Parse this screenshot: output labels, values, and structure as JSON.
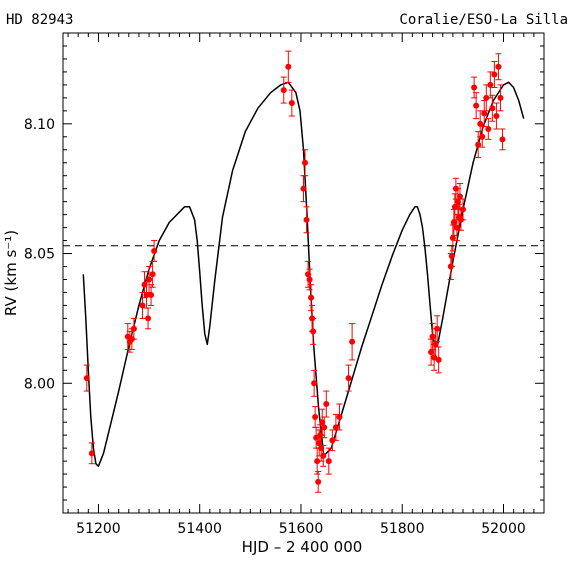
{
  "chart_data": {
    "type": "scatter",
    "title_left": "HD 82943",
    "title_right": "Coralie/ESO-La Silla",
    "xlabel": "HJD  –  2 400 000",
    "ylabel": "RV (km s⁻¹)",
    "xlim": [
      51130,
      52080
    ],
    "ylim": [
      7.95,
      8.135
    ],
    "xticks": [
      51200,
      51400,
      51600,
      51800,
      52000
    ],
    "xticklabels": [
      "51200",
      "51400",
      "51600",
      "51800",
      "52000"
    ],
    "yticks": [
      8.0,
      8.05,
      8.1
    ],
    "yticklabels": [
      "8.00",
      "8.05",
      "8.10"
    ],
    "reference_line": {
      "y": 8.053,
      "style": "dashed"
    },
    "grid": false,
    "series": [
      {
        "kind": "points",
        "color": "#ff0000",
        "x": [
          51177,
          51187,
          51258,
          51262,
          51266,
          51270,
          51287,
          51291,
          51295,
          51298,
          51300,
          51304,
          51307,
          51310,
          51566,
          51575,
          51582,
          51605,
          51608,
          51611,
          51614,
          51617,
          51620,
          51622,
          51624,
          51626,
          51628,
          51630,
          51632,
          51634,
          51636,
          51638,
          51640,
          51642,
          51644,
          51646,
          51650,
          51655,
          51662,
          51669,
          51676,
          51694,
          51701,
          51857,
          51860,
          51863,
          51866,
          51869,
          51872,
          51896,
          51898,
          51900,
          51902,
          51904,
          51906,
          51908,
          51910,
          51912,
          51914,
          51916,
          51920,
          51942,
          51946,
          51950,
          51954,
          51958,
          51962,
          51966,
          51970,
          51974,
          51978,
          51982,
          51986,
          51990,
          51994,
          51998
        ],
        "y": [
          8.002,
          7.973,
          8.018,
          8.016,
          8.017,
          8.021,
          8.03,
          8.038,
          8.034,
          8.025,
          8.04,
          8.034,
          8.042,
          8.051,
          8.113,
          8.122,
          8.108,
          8.075,
          8.085,
          8.063,
          8.042,
          8.04,
          8.033,
          8.025,
          8.02,
          8.0,
          7.987,
          7.979,
          7.97,
          7.962,
          7.977,
          7.98,
          7.975,
          7.985,
          7.972,
          7.983,
          7.992,
          7.97,
          7.978,
          7.983,
          7.987,
          8.002,
          8.016,
          8.012,
          8.018,
          8.01,
          8.015,
          8.021,
          8.009,
          8.045,
          8.049,
          8.056,
          8.062,
          8.068,
          8.075,
          8.06,
          8.07,
          8.064,
          8.072,
          8.063,
          8.067,
          8.114,
          8.107,
          8.092,
          8.1,
          8.095,
          8.104,
          8.11,
          8.098,
          8.115,
          8.106,
          8.119,
          8.103,
          8.122,
          8.11,
          8.094
        ],
        "err": [
          0.005,
          0.004,
          0.005,
          0.004,
          0.004,
          0.004,
          0.005,
          0.005,
          0.005,
          0.004,
          0.005,
          0.004,
          0.005,
          0.004,
          0.005,
          0.006,
          0.005,
          0.005,
          0.005,
          0.005,
          0.005,
          0.004,
          0.005,
          0.005,
          0.005,
          0.005,
          0.004,
          0.004,
          0.005,
          0.004,
          0.005,
          0.004,
          0.005,
          0.005,
          0.004,
          0.004,
          0.005,
          0.005,
          0.004,
          0.005,
          0.005,
          0.005,
          0.007,
          0.005,
          0.005,
          0.005,
          0.006,
          0.005,
          0.005,
          0.005,
          0.004,
          0.005,
          0.005,
          0.005,
          0.004,
          0.005,
          0.005,
          0.005,
          0.005,
          0.004,
          0.004,
          0.004,
          0.005,
          0.005,
          0.005,
          0.004,
          0.005,
          0.005,
          0.004,
          0.005,
          0.005,
          0.005,
          0.005,
          0.005,
          0.005,
          0.004
        ]
      },
      {
        "kind": "line",
        "color": "#000000",
        "x": [
          51170,
          51175,
          51180,
          51185,
          51190,
          51195,
          51200,
          51210,
          51220,
          51240,
          51260,
          51280,
          51300,
          51320,
          51340,
          51360,
          51370,
          51380,
          51390,
          51395,
          51400,
          51405,
          51410,
          51415,
          51420,
          51430,
          51445,
          51465,
          51490,
          51515,
          51540,
          51560,
          51575,
          51590,
          51598,
          51605,
          51612,
          51618,
          51625,
          51635,
          51645,
          51660,
          51680,
          51700,
          51720,
          51740,
          51760,
          51780,
          51800,
          51815,
          51825,
          51830,
          51835,
          51840,
          51845,
          51850,
          51855,
          51860,
          51865,
          51870,
          51880,
          51900,
          51920,
          51940,
          51960,
          51980,
          52000,
          52010,
          52020,
          52030,
          52040
        ],
        "y": [
          8.042,
          8.025,
          8.005,
          7.987,
          7.975,
          7.969,
          7.968,
          7.973,
          7.981,
          7.997,
          8.014,
          8.03,
          8.044,
          8.055,
          8.062,
          8.066,
          8.068,
          8.068,
          8.063,
          8.055,
          8.043,
          8.03,
          8.019,
          8.015,
          8.022,
          8.04,
          8.064,
          8.082,
          8.097,
          8.106,
          8.112,
          8.115,
          8.116,
          8.112,
          8.105,
          8.09,
          8.065,
          8.04,
          8.015,
          7.99,
          7.972,
          7.975,
          7.988,
          8.001,
          8.014,
          8.026,
          8.038,
          8.049,
          8.059,
          8.065,
          8.068,
          8.068,
          8.065,
          8.06,
          8.052,
          8.042,
          8.03,
          8.019,
          8.014,
          8.015,
          8.025,
          8.047,
          8.067,
          8.085,
          8.099,
          8.109,
          8.115,
          8.116,
          8.114,
          8.109,
          8.102
        ]
      }
    ]
  }
}
